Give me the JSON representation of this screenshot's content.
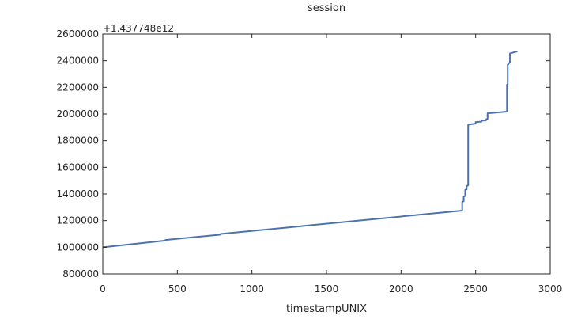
{
  "chart_data": {
    "type": "line",
    "title": "session",
    "xlabel": "timestampUNIX",
    "ylabel": "",
    "offset_label": "+1.437748e12",
    "xlim": [
      0,
      3000
    ],
    "ylim": [
      800000,
      2600000
    ],
    "xticks": [
      0,
      500,
      1000,
      1500,
      2000,
      2500,
      3000
    ],
    "yticks": [
      800000,
      1000000,
      1200000,
      1400000,
      1600000,
      1800000,
      2000000,
      2200000,
      2400000,
      2600000
    ],
    "xtick_labels": [
      "0",
      "500",
      "1000",
      "1500",
      "2000",
      "2500",
      "3000"
    ],
    "ytick_labels": [
      "800000",
      "1000000",
      "1200000",
      "1400000",
      "1600000",
      "1800000",
      "2000000",
      "2200000",
      "2400000",
      "2600000"
    ],
    "grid": false,
    "line_color": "#4c72b0",
    "series": [
      {
        "x": [
          0,
          420,
          420,
          790,
          790,
          2410,
          2410,
          2420,
          2420,
          2430,
          2430,
          2440,
          2440,
          2450,
          2450,
          2460,
          2460,
          2500,
          2500,
          2540,
          2540,
          2570,
          2570,
          2580,
          2580,
          2710,
          2710,
          2715,
          2715,
          2720,
          2720,
          2730,
          2730,
          2780
        ],
        "y": [
          1000000,
          1050000,
          1055000,
          1095000,
          1100000,
          1275000,
          1340000,
          1345000,
          1380000,
          1385000,
          1430000,
          1435000,
          1460000,
          1465000,
          1920000,
          1922000,
          1922000,
          1928000,
          1940000,
          1943000,
          1950000,
          1953000,
          1960000,
          1963000,
          2005000,
          2018000,
          2220000,
          2225000,
          2370000,
          2375000,
          2380000,
          2385000,
          2455000,
          2470000
        ]
      }
    ]
  }
}
